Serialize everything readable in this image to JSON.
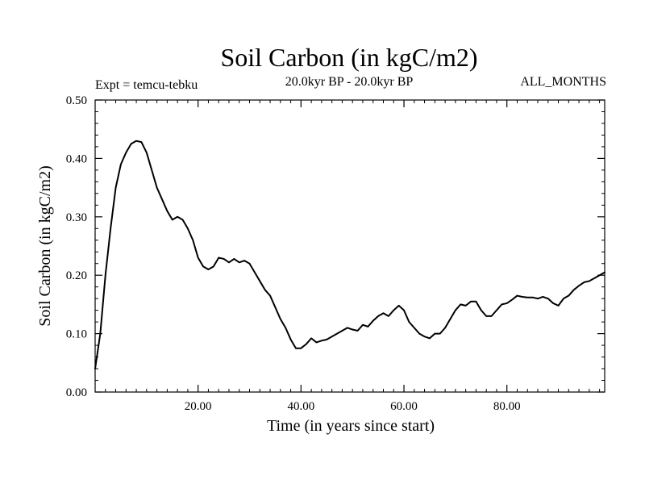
{
  "chart_data": {
    "type": "line",
    "title": "Soil Carbon (in kgC/m2)",
    "subtitle": "20.0kyr BP - 20.0kyr BP",
    "left_note": "Expt = temcu-tebku",
    "right_note": "ALL_MONTHS",
    "xlabel": "Time (in years since start)",
    "ylabel": "Soil Carbon (in kgC/m2)",
    "xlim": [
      0,
      99
    ],
    "ylim": [
      0,
      0.5
    ],
    "xticks": [
      20,
      40,
      60,
      80
    ],
    "xtick_labels": [
      "20.00",
      "40.00",
      "60.00",
      "80.00"
    ],
    "yticks": [
      0,
      0.1,
      0.2,
      0.3,
      0.4,
      0.5
    ],
    "ytick_labels": [
      "0.00",
      "0.10",
      "0.20",
      "0.30",
      "0.40",
      "0.50"
    ],
    "grid": false,
    "series": [
      {
        "name": "Soil Carbon",
        "color": "#000000",
        "x": [
          0,
          1,
          2,
          3,
          4,
          5,
          6,
          7,
          8,
          9,
          10,
          11,
          12,
          13,
          14,
          15,
          16,
          17,
          18,
          19,
          20,
          21,
          22,
          23,
          24,
          25,
          26,
          27,
          28,
          29,
          30,
          31,
          32,
          33,
          34,
          35,
          36,
          37,
          38,
          39,
          40,
          41,
          42,
          43,
          44,
          45,
          46,
          47,
          48,
          49,
          50,
          51,
          52,
          53,
          54,
          55,
          56,
          57,
          58,
          59,
          60,
          61,
          62,
          63,
          64,
          65,
          66,
          67,
          68,
          69,
          70,
          71,
          72,
          73,
          74,
          75,
          76,
          77,
          78,
          79,
          80,
          81,
          82,
          83,
          84,
          85,
          86,
          87,
          88,
          89,
          90,
          91,
          92,
          93,
          94,
          95,
          96,
          97,
          98,
          99
        ],
        "values": [
          0.04,
          0.1,
          0.2,
          0.28,
          0.35,
          0.39,
          0.41,
          0.425,
          0.43,
          0.428,
          0.41,
          0.38,
          0.35,
          0.33,
          0.31,
          0.295,
          0.3,
          0.295,
          0.28,
          0.26,
          0.23,
          0.215,
          0.21,
          0.215,
          0.23,
          0.228,
          0.222,
          0.228,
          0.222,
          0.225,
          0.22,
          0.205,
          0.19,
          0.175,
          0.165,
          0.145,
          0.125,
          0.11,
          0.09,
          0.075,
          0.075,
          0.082,
          0.092,
          0.085,
          0.088,
          0.09,
          0.095,
          0.1,
          0.105,
          0.11,
          0.107,
          0.105,
          0.115,
          0.112,
          0.122,
          0.13,
          0.135,
          0.13,
          0.14,
          0.148,
          0.14,
          0.12,
          0.11,
          0.1,
          0.095,
          0.092,
          0.1,
          0.1,
          0.11,
          0.125,
          0.14,
          0.15,
          0.148,
          0.155,
          0.155,
          0.14,
          0.13,
          0.13,
          0.14,
          0.15,
          0.152,
          0.158,
          0.165,
          0.163,
          0.162,
          0.162,
          0.16,
          0.163,
          0.16,
          0.152,
          0.148,
          0.16,
          0.165,
          0.175,
          0.182,
          0.188,
          0.19,
          0.195,
          0.2,
          0.205
        ]
      }
    ]
  }
}
